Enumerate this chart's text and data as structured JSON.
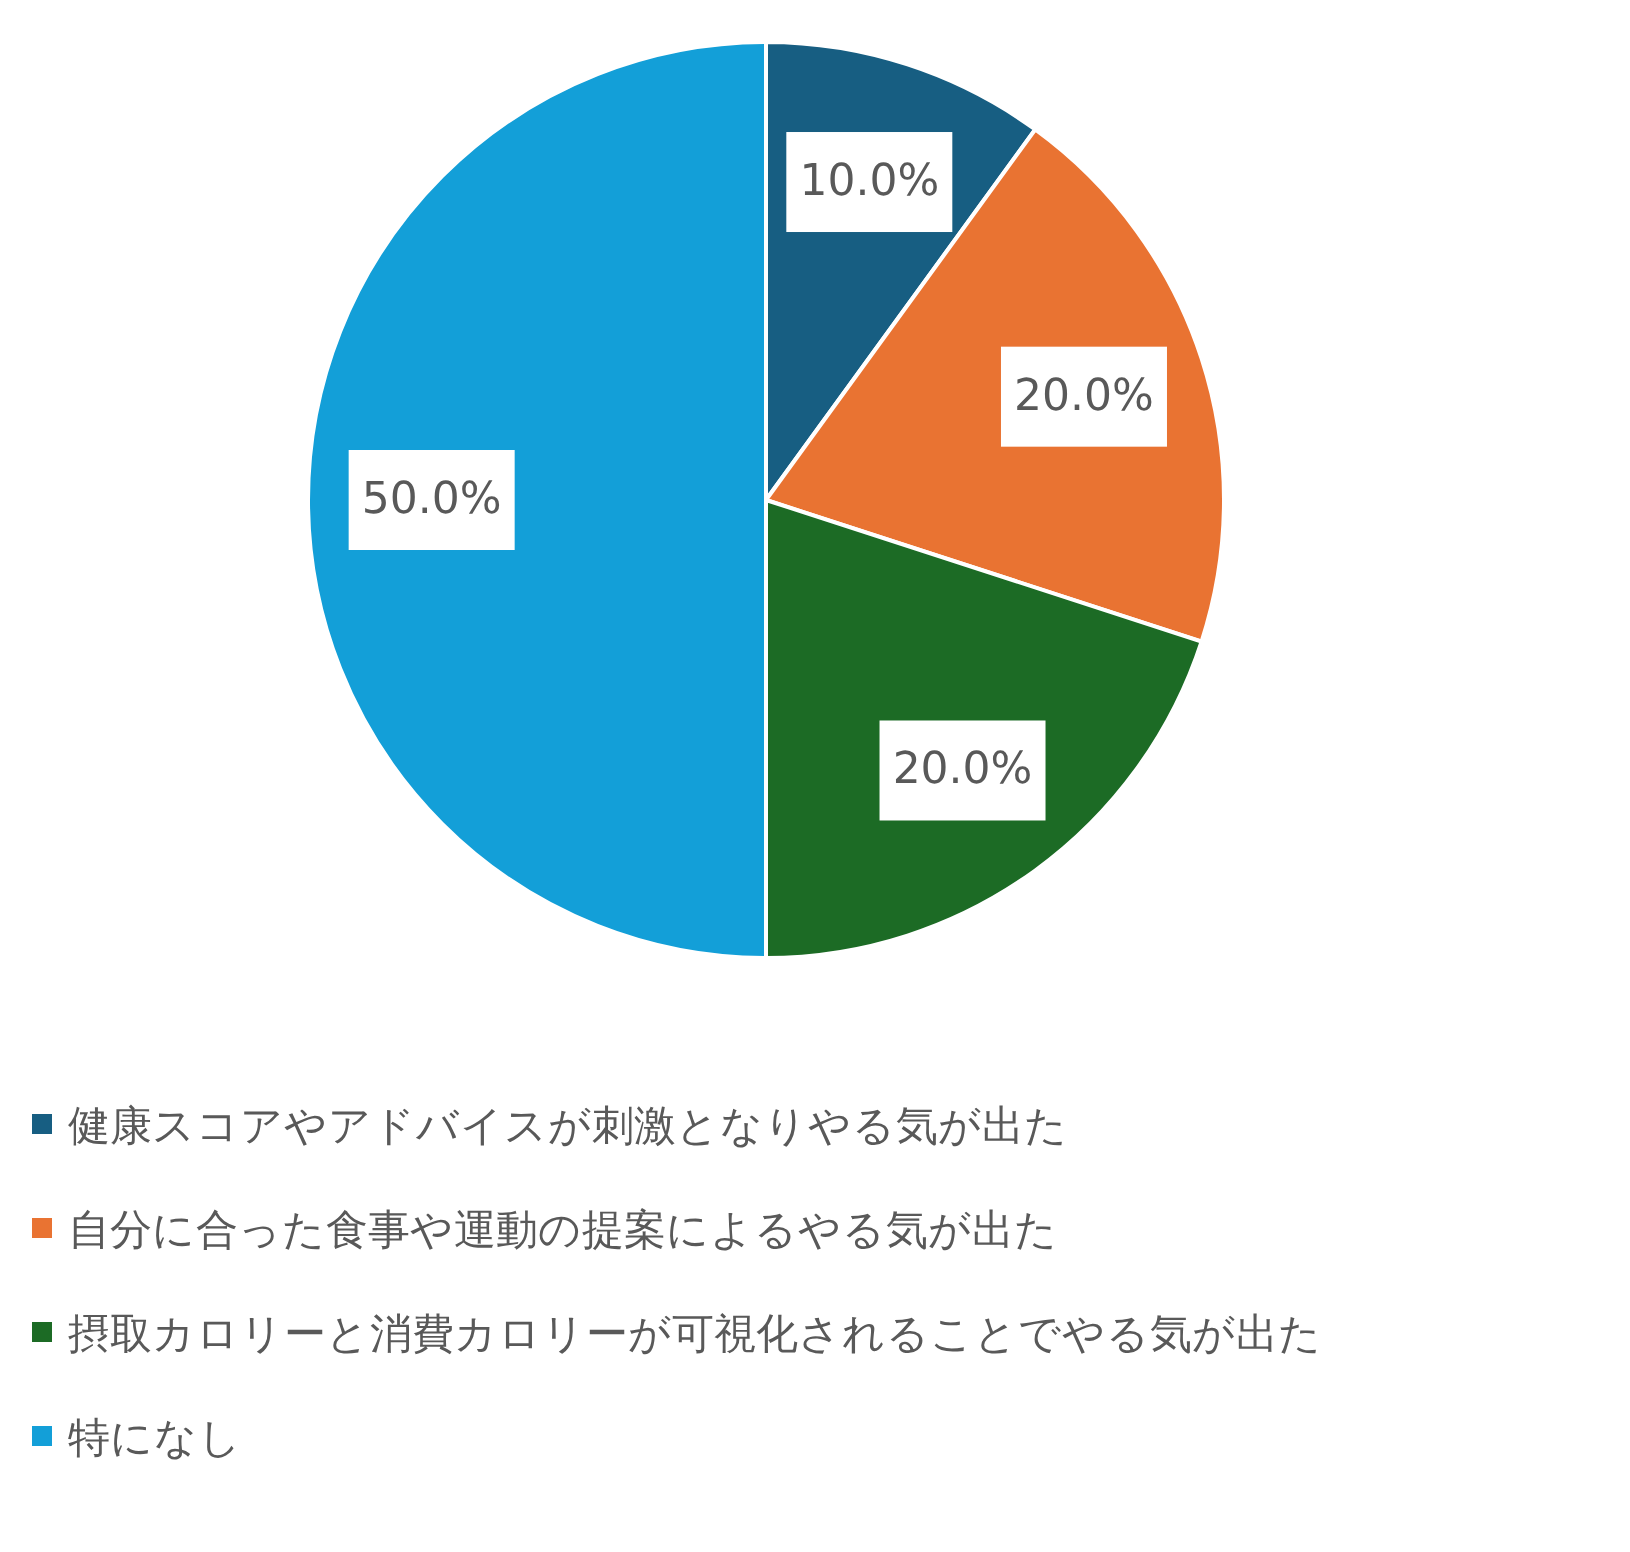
{
  "chart_data": {
    "type": "pie",
    "categories": [
      "健康スコアやアドバイスが刺激となりやる気が出た",
      "自分に合った食事や運動の提案によるやる気が出た",
      "摂取カロリーと消費カロリーが可視化されることでやる気が出た",
      "特になし"
    ],
    "values": [
      10,
      20,
      20,
      50
    ],
    "colors": [
      "#175e82",
      "#e97332",
      "#1c6b25",
      "#139fd8"
    ],
    "value_labels": [
      "10.0%",
      "20.0%",
      "20.0%",
      "50.0%"
    ],
    "legend": "bottom"
  }
}
